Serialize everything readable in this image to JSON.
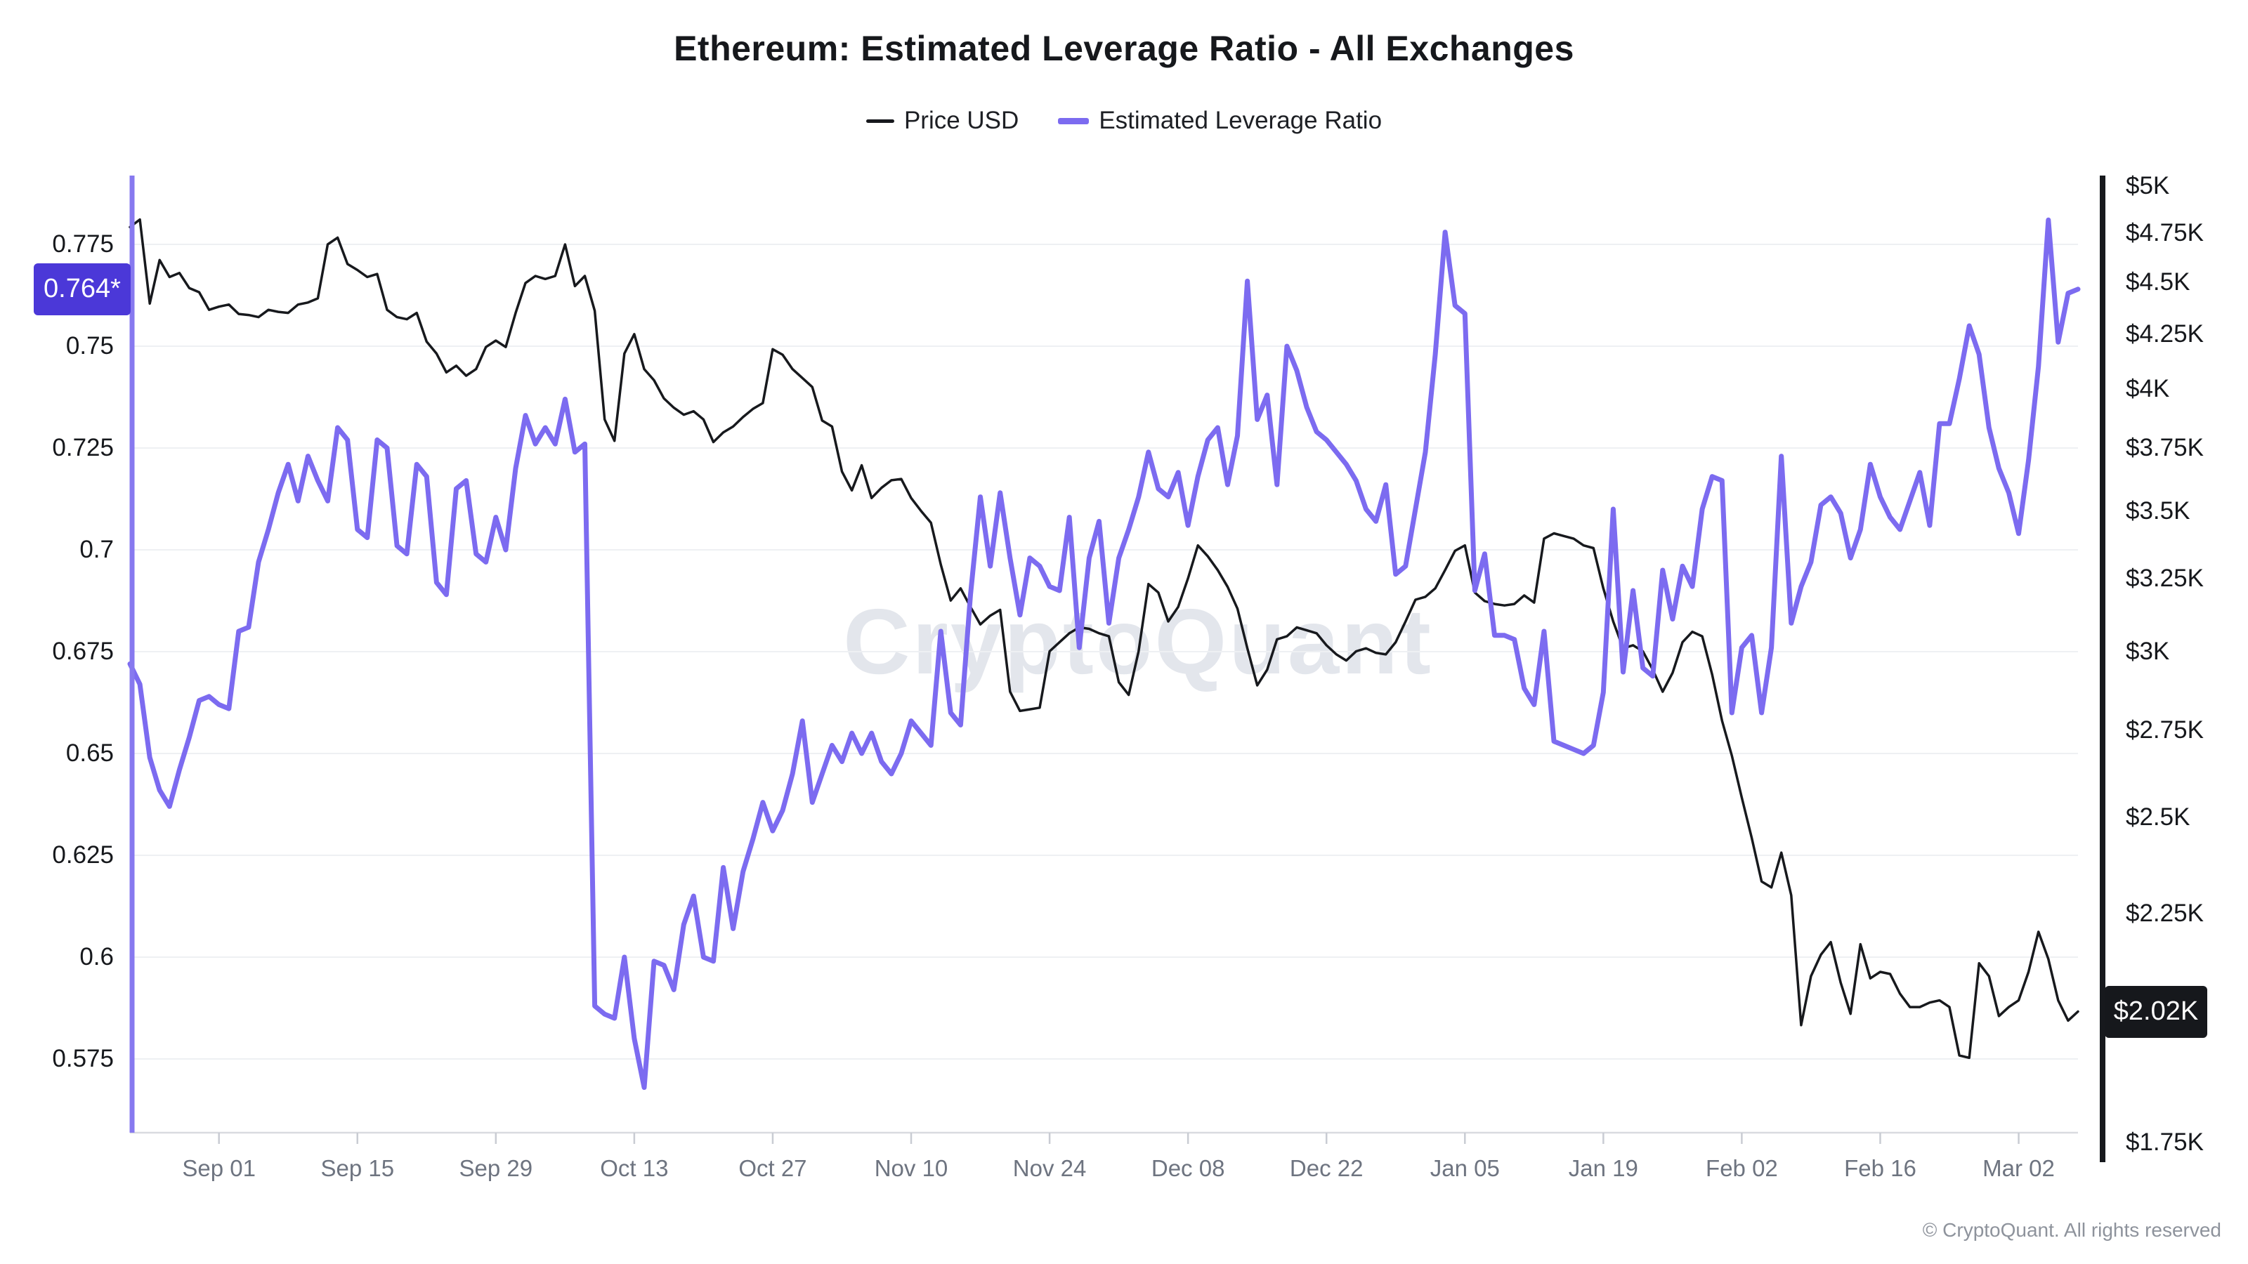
{
  "title": "Ethereum: Estimated Leverage Ratio - All Exchanges",
  "watermark": "CryptoQuant",
  "copyright": "© CryptoQuant. All rights reserved",
  "chart_data": {
    "type": "line",
    "title": "Ethereum: Estimated Leverage Ratio - All Exchanges",
    "legend_position": "top-center",
    "grid": "horizontal",
    "x_axis": {
      "tick_labels": [
        {
          "label": "Sep 01",
          "index": 9
        },
        {
          "label": "Sep 15",
          "index": 23
        },
        {
          "label": "Sep 29",
          "index": 37
        },
        {
          "label": "Oct 13",
          "index": 51
        },
        {
          "label": "Oct 27",
          "index": 65
        },
        {
          "label": "Nov 10",
          "index": 79
        },
        {
          "label": "Nov 24",
          "index": 93
        },
        {
          "label": "Dec 08",
          "index": 107
        },
        {
          "label": "Dec 22",
          "index": 121
        },
        {
          "label": "Jan 05",
          "index": 135
        },
        {
          "label": "Jan 19",
          "index": 149
        },
        {
          "label": "Feb 02",
          "index": 163
        },
        {
          "label": "Feb 16",
          "index": 177
        },
        {
          "label": "Mar 02",
          "index": 191
        }
      ]
    },
    "left_axis": {
      "side": "left",
      "scale": "linear",
      "axis_color": "#8779ef",
      "ticks": [
        {
          "label": "0.775",
          "value": 0.775
        },
        {
          "label": "0.75",
          "value": 0.75
        },
        {
          "label": "0.725",
          "value": 0.725
        },
        {
          "label": "0.7",
          "value": 0.7
        },
        {
          "label": "0.675",
          "value": 0.675
        },
        {
          "label": "0.65",
          "value": 0.65
        },
        {
          "label": "0.625",
          "value": 0.625
        },
        {
          "label": "0.6",
          "value": 0.6
        },
        {
          "label": "0.575",
          "value": 0.575
        }
      ],
      "current_badge": {
        "text": "0.764*",
        "value": 0.764,
        "bg": "#4b38d8"
      }
    },
    "right_axis": {
      "side": "right",
      "scale": "log",
      "axis_color": "#17191d",
      "ticks": [
        {
          "label": "$5K",
          "value": 5000
        },
        {
          "label": "$4.75K",
          "value": 4750
        },
        {
          "label": "$4.5K",
          "value": 4500
        },
        {
          "label": "$4.25K",
          "value": 4250
        },
        {
          "label": "$4K",
          "value": 4000
        },
        {
          "label": "$3.75K",
          "value": 3750
        },
        {
          "label": "$3.5K",
          "value": 3500
        },
        {
          "label": "$3.25K",
          "value": 3250
        },
        {
          "label": "$3K",
          "value": 3000
        },
        {
          "label": "$2.75K",
          "value": 2750
        },
        {
          "label": "$2.5K",
          "value": 2500
        },
        {
          "label": "$2.25K",
          "value": 2250
        },
        {
          "label": "$1.75K",
          "value": 1750
        }
      ],
      "current_badge": {
        "text": "$2.02K",
        "value": 2020,
        "bg": "#16181c"
      }
    },
    "series": [
      {
        "name": "Price USD",
        "axis": "right",
        "color": "#17191d",
        "width": 3.5,
        "values": [
          4780,
          4820,
          4395,
          4610,
          4525,
          4545,
          4470,
          4450,
          4365,
          4380,
          4390,
          4345,
          4340,
          4330,
          4365,
          4355,
          4350,
          4390,
          4400,
          4420,
          4690,
          4725,
          4590,
          4560,
          4525,
          4540,
          4365,
          4330,
          4320,
          4350,
          4215,
          4160,
          4075,
          4105,
          4060,
          4090,
          4190,
          4220,
          4190,
          4350,
          4495,
          4530,
          4515,
          4530,
          4690,
          4480,
          4530,
          4360,
          3870,
          3780,
          4160,
          4250,
          4090,
          4040,
          3960,
          3920,
          3890,
          3905,
          3870,
          3775,
          3815,
          3840,
          3880,
          3915,
          3940,
          4180,
          4155,
          4090,
          4050,
          4010,
          3865,
          3840,
          3655,
          3580,
          3680,
          3550,
          3590,
          3620,
          3625,
          3550,
          3500,
          3455,
          3300,
          3172,
          3215,
          3150,
          3090,
          3120,
          3140,
          2870,
          2810,
          2815,
          2820,
          3000,
          3030,
          3060,
          3080,
          3075,
          3060,
          3050,
          2900,
          2860,
          3000,
          3230,
          3200,
          3100,
          3150,
          3250,
          3370,
          3330,
          3280,
          3220,
          3144,
          3010,
          2890,
          2940,
          3040,
          3050,
          3080,
          3070,
          3060,
          3020,
          2990,
          2970,
          3000,
          3010,
          2995,
          2990,
          3030,
          3100,
          3175,
          3185,
          3215,
          3280,
          3350,
          3370,
          3200,
          3170,
          3160,
          3155,
          3160,
          3190,
          3165,
          3395,
          3415,
          3405,
          3395,
          3370,
          3360,
          3215,
          3100,
          3010,
          3020,
          3000,
          2940,
          2870,
          2930,
          3030,
          3065,
          3050,
          2925,
          2780,
          2675,
          2555,
          2445,
          2330,
          2315,
          2405,
          2295,
          1990,
          2100,
          2150,
          2180,
          2085,
          2015,
          2175,
          2095,
          2110,
          2105,
          2060,
          2030,
          2030,
          2040,
          2045,
          2030,
          1925,
          1920,
          2130,
          2100,
          2010,
          2030,
          2045,
          2110,
          2205,
          2140,
          2045,
          2000,
          2020
        ]
      },
      {
        "name": "Estimated Leverage Ratio",
        "axis": "left",
        "color": "#7c6bf0",
        "width": 7,
        "values": [
          0.672,
          0.667,
          0.649,
          0.641,
          0.637,
          0.646,
          0.654,
          0.663,
          0.664,
          0.662,
          0.661,
          0.68,
          0.681,
          0.697,
          0.705,
          0.714,
          0.721,
          0.712,
          0.723,
          0.717,
          0.712,
          0.73,
          0.727,
          0.705,
          0.703,
          0.727,
          0.725,
          0.701,
          0.699,
          0.721,
          0.718,
          0.692,
          0.689,
          0.715,
          0.717,
          0.699,
          0.697,
          0.708,
          0.7,
          0.72,
          0.733,
          0.726,
          0.73,
          0.726,
          0.737,
          0.724,
          0.726,
          0.588,
          0.586,
          0.585,
          0.6,
          0.58,
          0.568,
          0.599,
          0.598,
          0.592,
          0.608,
          0.615,
          0.6,
          0.599,
          0.622,
          0.607,
          0.621,
          0.629,
          0.638,
          0.631,
          0.636,
          0.645,
          0.658,
          0.638,
          0.645,
          0.652,
          0.648,
          0.655,
          0.65,
          0.655,
          0.648,
          0.645,
          0.65,
          0.658,
          0.655,
          0.652,
          0.68,
          0.66,
          0.657,
          0.689,
          0.713,
          0.696,
          0.714,
          0.698,
          0.684,
          0.698,
          0.696,
          0.691,
          0.69,
          0.708,
          0.676,
          0.698,
          0.707,
          0.682,
          0.698,
          0.705,
          0.713,
          0.724,
          0.715,
          0.713,
          0.719,
          0.706,
          0.718,
          0.727,
          0.73,
          0.716,
          0.728,
          0.766,
          0.732,
          0.738,
          0.716,
          0.75,
          0.744,
          0.735,
          0.729,
          0.727,
          0.724,
          0.721,
          0.717,
          0.71,
          0.707,
          0.716,
          0.694,
          0.696,
          0.71,
          0.724,
          0.748,
          0.778,
          0.76,
          0.758,
          0.69,
          0.699,
          0.679,
          0.679,
          0.678,
          0.666,
          0.662,
          0.68,
          0.653,
          0.652,
          0.651,
          0.65,
          0.652,
          0.665,
          0.71,
          0.67,
          0.69,
          0.671,
          0.669,
          0.695,
          0.683,
          0.696,
          0.691,
          0.71,
          0.718,
          0.717,
          0.66,
          0.676,
          0.679,
          0.66,
          0.676,
          0.723,
          0.682,
          0.691,
          0.697,
          0.711,
          0.713,
          0.709,
          0.698,
          0.705,
          0.721,
          0.713,
          0.708,
          0.705,
          0.712,
          0.719,
          0.706,
          0.731,
          0.731,
          0.742,
          0.755,
          0.748,
          0.73,
          0.72,
          0.714,
          0.704,
          0.722,
          0.745,
          0.781,
          0.751,
          0.763,
          0.764
        ]
      }
    ]
  }
}
